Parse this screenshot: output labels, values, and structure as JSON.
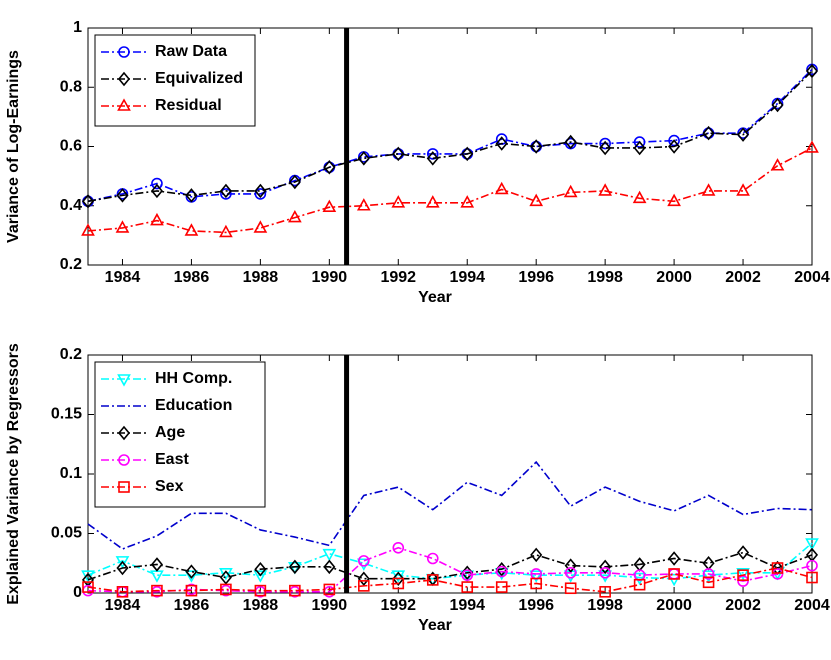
{
  "chart_data": [
    {
      "type": "line",
      "xlabel": "Year",
      "ylabel": "Variance of Log-Earnings",
      "x": [
        1983,
        1984,
        1985,
        1986,
        1987,
        1988,
        1989,
        1990,
        1991,
        1992,
        1993,
        1994,
        1995,
        1996,
        1997,
        1998,
        1999,
        2000,
        2001,
        2002,
        2003,
        2004
      ],
      "xlim": [
        1983,
        2004
      ],
      "xticks": [
        1984,
        1986,
        1988,
        1990,
        1992,
        1994,
        1996,
        1998,
        2000,
        2002,
        2004
      ],
      "ylim": [
        0.2,
        1
      ],
      "yticks": [
        0.2,
        0.4,
        0.6,
        0.8,
        1
      ],
      "vline": 1990.5,
      "legend": "upper left",
      "linestyle": "dashdot",
      "series": [
        {
          "name": "Raw Data",
          "color": "#0000ff",
          "marker": "circle",
          "values": [
            0.415,
            0.44,
            0.475,
            0.43,
            0.44,
            0.44,
            0.485,
            0.53,
            0.565,
            0.575,
            0.575,
            0.575,
            0.625,
            0.6,
            0.61,
            0.61,
            0.615,
            0.62,
            0.645,
            0.645,
            0.745,
            0.86
          ]
        },
        {
          "name": "Equivalized",
          "color": "#000000",
          "marker": "diamond",
          "values": [
            0.415,
            0.435,
            0.45,
            0.435,
            0.45,
            0.45,
            0.48,
            0.53,
            0.56,
            0.575,
            0.56,
            0.575,
            0.61,
            0.6,
            0.615,
            0.595,
            0.595,
            0.6,
            0.645,
            0.64,
            0.74,
            0.855
          ]
        },
        {
          "name": "Residual",
          "color": "#ff0000",
          "marker": "triangle-up",
          "values": [
            0.315,
            0.325,
            0.35,
            0.315,
            0.31,
            0.325,
            0.36,
            0.395,
            0.4,
            0.41,
            0.41,
            0.41,
            0.455,
            0.415,
            0.445,
            0.45,
            0.425,
            0.415,
            0.45,
            0.45,
            0.535,
            0.595
          ]
        }
      ]
    },
    {
      "type": "line",
      "xlabel": "Year",
      "ylabel": "Explained Variance by Regressors",
      "x": [
        1983,
        1984,
        1985,
        1986,
        1987,
        1988,
        1989,
        1990,
        1991,
        1992,
        1993,
        1994,
        1995,
        1996,
        1997,
        1998,
        1999,
        2000,
        2001,
        2002,
        2003,
        2004
      ],
      "xlim": [
        1983,
        2004
      ],
      "xticks": [
        1984,
        1986,
        1988,
        1990,
        1992,
        1994,
        1996,
        1998,
        2000,
        2002,
        2004
      ],
      "ylim": [
        0,
        0.2
      ],
      "yticks": [
        0,
        0.05,
        0.1,
        0.15,
        0.2
      ],
      "vline": 1990.5,
      "legend": "upper left",
      "linestyle": "dashdot",
      "series": [
        {
          "name": "HH Comp.",
          "color": "#00ffff",
          "marker": "triangle-down",
          "values": [
            0.015,
            0.027,
            0.015,
            0.015,
            0.017,
            0.015,
            0.022,
            0.033,
            0.025,
            0.015,
            0.012,
            0.015,
            0.017,
            0.015,
            0.015,
            0.015,
            0.013,
            0.012,
            0.015,
            0.017,
            0.017,
            0.042
          ]
        },
        {
          "name": "Education",
          "color": "#0000cc",
          "marker": "none",
          "values": [
            0.058,
            0.037,
            0.048,
            0.067,
            0.067,
            0.053,
            0.047,
            0.04,
            0.082,
            0.089,
            0.07,
            0.093,
            0.082,
            0.11,
            0.073,
            0.089,
            0.077,
            0.069,
            0.082,
            0.066,
            0.071,
            0.07
          ]
        },
        {
          "name": "Age",
          "color": "#000000",
          "marker": "diamond",
          "values": [
            0.011,
            0.021,
            0.024,
            0.018,
            0.013,
            0.02,
            0.022,
            0.022,
            0.012,
            0.012,
            0.012,
            0.017,
            0.02,
            0.032,
            0.023,
            0.022,
            0.024,
            0.029,
            0.025,
            0.034,
            0.021,
            0.032
          ]
        },
        {
          "name": "East",
          "color": "#ff00ff",
          "marker": "circle",
          "values": [
            0.002,
            0.001,
            0.001,
            0.003,
            0.002,
            0.001,
            0.001,
            0.001,
            0.027,
            0.038,
            0.029,
            0.015,
            0.018,
            0.016,
            0.017,
            0.017,
            0.015,
            0.016,
            0.016,
            0.01,
            0.016,
            0.023
          ]
        },
        {
          "name": "Sex",
          "color": "#ff0000",
          "marker": "square",
          "values": [
            0.005,
            0.001,
            0.002,
            0.002,
            0.003,
            0.002,
            0.002,
            0.003,
            0.006,
            0.008,
            0.011,
            0.005,
            0.005,
            0.008,
            0.004,
            0.001,
            0.007,
            0.016,
            0.009,
            0.015,
            0.021,
            0.013
          ]
        }
      ]
    }
  ]
}
